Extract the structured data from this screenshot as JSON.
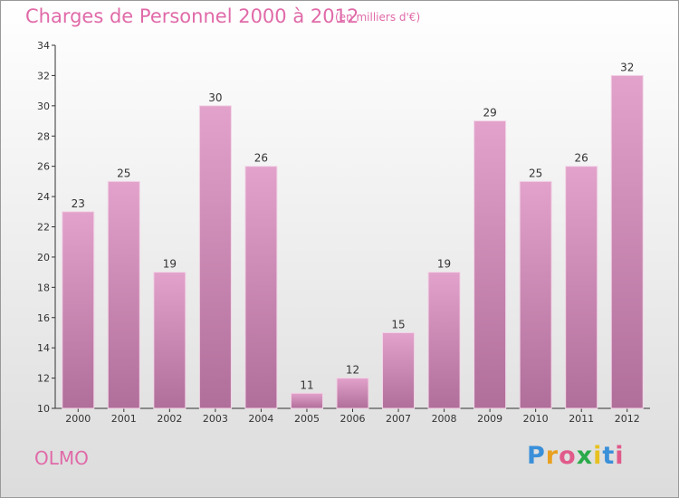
{
  "header": {
    "title": "Charges de Personnel 2000 à 2012",
    "subtitle": "(en milliers d'€)"
  },
  "footer": {
    "place": "OLMO",
    "logo": "Proxiti"
  },
  "colors": {
    "bar_top": "#e2a2cb",
    "bar_bottom": "#b06e9a",
    "accent": "#e06aa8"
  },
  "chart_data": {
    "type": "bar",
    "categories": [
      "2000",
      "2001",
      "2002",
      "2003",
      "2004",
      "2005",
      "2006",
      "2007",
      "2008",
      "2009",
      "2010",
      "2011",
      "2012"
    ],
    "values": [
      23,
      25,
      19,
      30,
      26,
      11,
      12,
      15,
      19,
      29,
      25,
      26,
      32
    ],
    "title": "Charges de Personnel 2000 à 2012",
    "subtitle": "(en milliers d'€)",
    "ylim": [
      10,
      34
    ],
    "yticks": [
      10,
      12,
      14,
      16,
      18,
      20,
      22,
      24,
      26,
      28,
      30,
      32,
      34
    ],
    "grid": false,
    "legend": "none"
  }
}
